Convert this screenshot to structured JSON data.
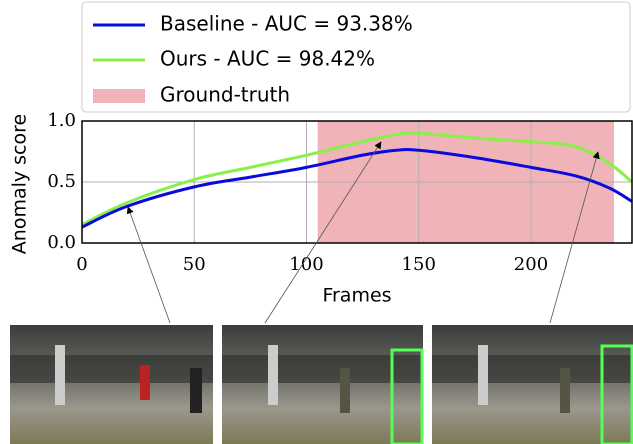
{
  "chart_data": {
    "type": "line",
    "x": [
      0,
      20,
      50,
      75,
      100,
      125,
      140,
      150,
      175,
      200,
      220,
      235,
      245
    ],
    "series": [
      {
        "name": "Baseline - AUC = 93.38%",
        "color": "#0a0adc",
        "values": [
          0.13,
          0.3,
          0.46,
          0.54,
          0.62,
          0.72,
          0.76,
          0.76,
          0.7,
          0.62,
          0.55,
          0.45,
          0.34
        ]
      },
      {
        "name": "Ours - AUC = 98.42%",
        "color": "#88f048",
        "values": [
          0.15,
          0.33,
          0.52,
          0.62,
          0.72,
          0.83,
          0.89,
          0.9,
          0.86,
          0.83,
          0.79,
          0.65,
          0.5
        ]
      }
    ],
    "ground_truth": {
      "name": "Ground-truth",
      "color": "#f0b4b8",
      "x": [
        105,
        237
      ]
    },
    "xlim": [
      0,
      245
    ],
    "ylim": [
      0,
      1
    ],
    "xticks": [
      0,
      50,
      100,
      150,
      200
    ],
    "yticks": [
      {
        "value": 0,
        "label": "0.0"
      },
      0.5,
      {
        "value": 1,
        "label": "1.0"
      }
    ],
    "xlabel": "Frames",
    "ylabel": "Anomaly score",
    "grid": true
  }
}
